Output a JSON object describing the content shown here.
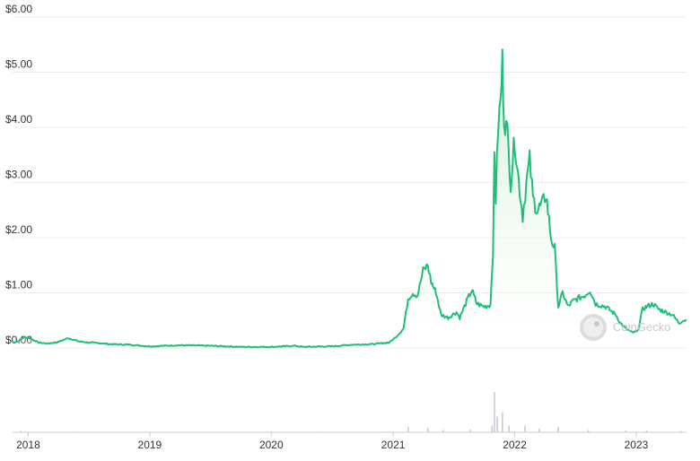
{
  "chart_data": {
    "type": "area",
    "title": "",
    "xlabel": "",
    "ylabel": "",
    "ylim": [
      0,
      6
    ],
    "y_ticks": [
      "$0.00",
      "$1.00",
      "$2.00",
      "$3.00",
      "$4.00",
      "$5.00",
      "$6.00"
    ],
    "x_ticks": [
      "2018",
      "2019",
      "2020",
      "2021",
      "2022",
      "2023"
    ],
    "grid": true,
    "watermark": "CoinGecko",
    "colors": {
      "line": "#1fbf7a",
      "area_top": "#cdeccd",
      "area_bottom": "#ffffff",
      "grid": "#ececec",
      "volume": "#c7cad6"
    },
    "series": [
      {
        "values_by_date": [
          [
            "2017-11-15",
            0.1
          ],
          [
            "2017-12-01",
            0.12
          ],
          [
            "2017-12-20",
            0.2
          ],
          [
            "2018-01-05",
            0.18
          ],
          [
            "2018-02-01",
            0.1
          ],
          [
            "2018-03-01",
            0.08
          ],
          [
            "2018-04-01",
            0.11
          ],
          [
            "2018-05-01",
            0.18
          ],
          [
            "2018-06-01",
            0.12
          ],
          [
            "2018-07-01",
            0.1
          ],
          [
            "2018-08-01",
            0.09
          ],
          [
            "2018-09-01",
            0.07
          ],
          [
            "2018-11-01",
            0.06
          ],
          [
            "2019-01-01",
            0.03
          ],
          [
            "2019-04-01",
            0.05
          ],
          [
            "2019-07-01",
            0.04
          ],
          [
            "2019-10-01",
            0.02
          ],
          [
            "2020-01-01",
            0.02
          ],
          [
            "2020-03-15",
            0.04
          ],
          [
            "2020-04-01",
            0.02
          ],
          [
            "2020-07-01",
            0.03
          ],
          [
            "2020-09-01",
            0.06
          ],
          [
            "2020-11-01",
            0.07
          ],
          [
            "2020-12-20",
            0.1
          ],
          [
            "2021-01-10",
            0.2
          ],
          [
            "2021-02-01",
            0.35
          ],
          [
            "2021-02-15",
            0.9
          ],
          [
            "2021-03-01",
            1.0
          ],
          [
            "2021-03-15",
            0.95
          ],
          [
            "2021-04-01",
            1.4
          ],
          [
            "2021-04-15",
            1.5
          ],
          [
            "2021-04-25",
            1.2
          ],
          [
            "2021-05-10",
            1.0
          ],
          [
            "2021-05-25",
            0.6
          ],
          [
            "2021-06-15",
            0.55
          ],
          [
            "2021-07-10",
            0.65
          ],
          [
            "2021-07-20",
            0.55
          ],
          [
            "2021-08-10",
            0.85
          ],
          [
            "2021-08-25",
            1.05
          ],
          [
            "2021-09-10",
            0.8
          ],
          [
            "2021-10-01",
            0.75
          ],
          [
            "2021-10-20",
            0.78
          ],
          [
            "2021-10-28",
            1.8
          ],
          [
            "2021-11-01",
            3.5
          ],
          [
            "2021-11-05",
            2.7
          ],
          [
            "2021-11-12",
            4.0
          ],
          [
            "2021-11-20",
            4.5
          ],
          [
            "2021-11-25",
            5.2
          ],
          [
            "2021-11-30",
            4.2
          ],
          [
            "2021-12-10",
            3.9
          ],
          [
            "2021-12-20",
            3.0
          ],
          [
            "2022-01-01",
            3.8
          ],
          [
            "2022-01-10",
            3.2
          ],
          [
            "2022-01-25",
            2.4
          ],
          [
            "2022-02-05",
            3.0
          ],
          [
            "2022-02-15",
            3.4
          ],
          [
            "2022-02-25",
            2.7
          ],
          [
            "2022-03-10",
            2.5
          ],
          [
            "2022-03-25",
            2.6
          ],
          [
            "2022-04-05",
            2.8
          ],
          [
            "2022-04-20",
            2.0
          ],
          [
            "2022-05-01",
            1.8
          ],
          [
            "2022-05-12",
            0.75
          ],
          [
            "2022-05-25",
            1.0
          ],
          [
            "2022-06-10",
            0.75
          ],
          [
            "2022-06-25",
            0.85
          ],
          [
            "2022-07-10",
            0.9
          ],
          [
            "2022-07-30",
            0.95
          ],
          [
            "2022-08-15",
            1.05
          ],
          [
            "2022-09-01",
            0.8
          ],
          [
            "2022-10-01",
            0.75
          ],
          [
            "2022-11-01",
            0.6
          ],
          [
            "2022-11-15",
            0.45
          ],
          [
            "2022-12-01",
            0.35
          ],
          [
            "2022-12-20",
            0.28
          ],
          [
            "2023-01-05",
            0.3
          ],
          [
            "2023-01-20",
            0.7
          ],
          [
            "2023-02-01",
            0.75
          ],
          [
            "2023-02-20",
            0.8
          ],
          [
            "2023-03-10",
            0.7
          ],
          [
            "2023-04-01",
            0.65
          ],
          [
            "2023-04-20",
            0.6
          ],
          [
            "2023-05-10",
            0.45
          ],
          [
            "2023-05-20",
            0.5
          ],
          [
            "2023-06-01",
            0.5
          ]
        ]
      }
    ],
    "volume_by_date": [
      [
        "2017-12-10",
        0.03
      ],
      [
        "2018-06-01",
        0.01
      ],
      [
        "2019-06-01",
        0.005
      ],
      [
        "2020-06-01",
        0.005
      ],
      [
        "2020-12-01",
        0.02
      ],
      [
        "2021-02-15",
        0.12
      ],
      [
        "2021-04-15",
        0.1
      ],
      [
        "2021-06-01",
        0.05
      ],
      [
        "2021-08-20",
        0.06
      ],
      [
        "2021-10-25",
        0.15
      ],
      [
        "2021-11-01",
        0.9
      ],
      [
        "2021-11-10",
        0.35
      ],
      [
        "2021-11-25",
        0.45
      ],
      [
        "2021-12-15",
        0.15
      ],
      [
        "2022-02-01",
        0.15
      ],
      [
        "2022-03-15",
        0.08
      ],
      [
        "2022-05-12",
        0.12
      ],
      [
        "2022-08-10",
        0.05
      ],
      [
        "2022-12-01",
        0.04
      ],
      [
        "2023-02-01",
        0.04
      ],
      [
        "2023-05-15",
        0.03
      ]
    ]
  }
}
